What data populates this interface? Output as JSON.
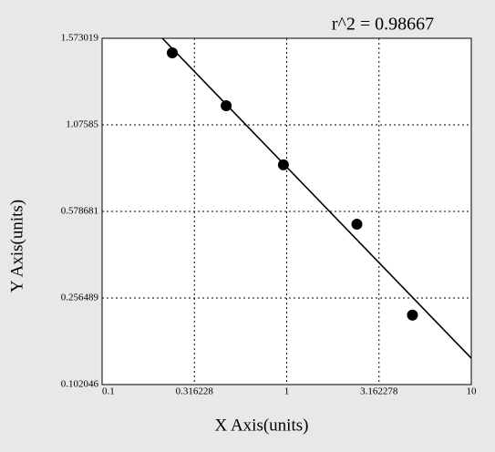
{
  "chart_data": {
    "type": "scatter",
    "annotation": "r^2  = 0.98667",
    "x_label": "X Axis(units)",
    "y_label": "Y Axis(units)",
    "x": [
      0.24,
      0.47,
      0.96,
      2.4,
      4.8
    ],
    "values": [
      1.489,
      1.186,
      0.846,
      0.531,
      0.226
    ],
    "color": "#000000",
    "fit": {
      "x": [
        0.212,
        10
      ],
      "y": [
        1.573019,
        0.149
      ]
    },
    "xscale": "log",
    "xlim": [
      0.1,
      10
    ],
    "xticks": [
      0.1,
      0.316228,
      1,
      3.162278,
      10
    ],
    "ylim": [
      0.102046,
      1.573019
    ],
    "yticks": [
      0.102046,
      0.256489,
      0.578681,
      1.07585,
      1.573019
    ],
    "grid": true
  }
}
